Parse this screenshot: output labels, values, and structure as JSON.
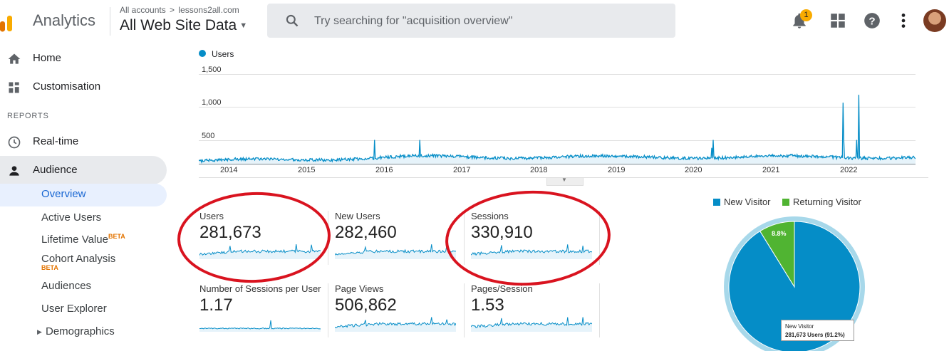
{
  "header": {
    "app_title": "Analytics",
    "account_crumb": "All accounts",
    "account_site": "lessons2all.com",
    "view_name": "All Web Site Data",
    "search_placeholder": "Try searching for \"acquisition overview\"",
    "notification_count": "1"
  },
  "sidebar": {
    "home": "Home",
    "customisation": "Customisation",
    "reports_heading": "REPORTS",
    "realtime": "Real-time",
    "audience": "Audience",
    "sub": {
      "overview": "Overview",
      "active_users": "Active Users",
      "lifetime_value": "Lifetime Value",
      "lifetime_beta": "BETA",
      "cohort_analysis": "Cohort Analysis",
      "cohort_beta": "BETA",
      "audiences": "Audiences",
      "user_explorer": "User Explorer",
      "demographics": "Demographics"
    }
  },
  "chart": {
    "legend": "Users",
    "y_ticks": [
      "1,500",
      "1,000",
      "500"
    ],
    "x_ticks": [
      "2014",
      "2015",
      "2016",
      "2017",
      "2018",
      "2019",
      "2020",
      "2021",
      "2022"
    ],
    "color": "#058dc7"
  },
  "chart_data": {
    "type": "line",
    "series": [
      {
        "name": "Users",
        "values_note": ""
      }
    ],
    "x": [
      "2014",
      "2015",
      "2016",
      "2017",
      "2018",
      "2019",
      "2020",
      "2021",
      "2022"
    ],
    "ylim": [
      0,
      1500
    ],
    "yticks": [
      500,
      1000,
      1500
    ],
    "grid": true,
    "legend": "top-left"
  },
  "metrics": [
    {
      "label": "Users",
      "value": "281,673"
    },
    {
      "label": "New Users",
      "value": "282,460"
    },
    {
      "label": "Sessions",
      "value": "330,910"
    },
    {
      "label": "Number of Sessions per User",
      "value": "1.17"
    },
    {
      "label": "Page Views",
      "value": "506,862"
    },
    {
      "label": "Pages/Session",
      "value": "1.53"
    }
  ],
  "pie": {
    "legend_new": "New Visitor",
    "legend_returning": "Returning Visitor",
    "new_color": "#058dc7",
    "returning_color": "#50b432",
    "returning_pct_label": "8.8%",
    "tooltip_title": "New Visitor",
    "tooltip_value": "281,673 Users (91.2%)",
    "new_share": 0.912,
    "returning_share": 0.088
  },
  "annotation_color": "#d9131f"
}
